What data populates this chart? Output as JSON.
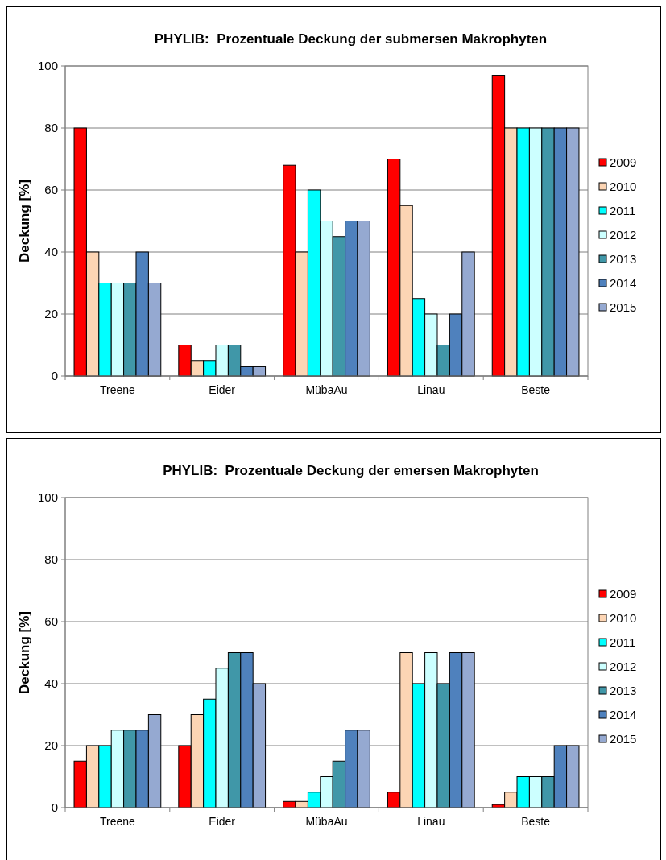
{
  "chart_data": [
    {
      "type": "bar",
      "title": "PHYLIB:  Prozentuale Deckung der submersen Makrophyten",
      "ylabel": "Deckung [%]",
      "categories": [
        "Treene",
        "Eider",
        "MübaAu",
        "Linau",
        "Beste"
      ],
      "ylim": [
        0,
        100
      ],
      "yticks": [
        0,
        20,
        40,
        60,
        80,
        100
      ],
      "grid": "y",
      "legend": "right",
      "series": [
        {
          "name": "2009",
          "color": "#ff0000",
          "values": [
            80,
            10,
            68,
            70,
            97
          ]
        },
        {
          "name": "2010",
          "color": "#fcd5b4",
          "values": [
            40,
            5,
            40,
            55,
            80
          ]
        },
        {
          "name": "2011",
          "color": "#00ffff",
          "values": [
            30,
            5,
            60,
            25,
            80
          ]
        },
        {
          "name": "2012",
          "color": "#ccffff",
          "values": [
            30,
            10,
            50,
            20,
            80
          ]
        },
        {
          "name": "2013",
          "color": "#4097a8",
          "values": [
            30,
            10,
            45,
            10,
            80
          ]
        },
        {
          "name": "2014",
          "color": "#4f81bd",
          "values": [
            40,
            3,
            50,
            20,
            80
          ]
        },
        {
          "name": "2015",
          "color": "#95a9d1",
          "values": [
            30,
            3,
            50,
            40,
            80
          ]
        }
      ]
    },
    {
      "type": "bar",
      "title": "PHYLIB:  Prozentuale Deckung der emersen Makrophyten",
      "ylabel": "Deckung [%]",
      "categories": [
        "Treene",
        "Eider",
        "MübaAu",
        "Linau",
        "Beste"
      ],
      "ylim": [
        0,
        100
      ],
      "yticks": [
        0,
        20,
        40,
        60,
        80,
        100
      ],
      "grid": "y",
      "legend": "right",
      "series": [
        {
          "name": "2009",
          "color": "#ff0000",
          "values": [
            15,
            20,
            2,
            5,
            1
          ]
        },
        {
          "name": "2010",
          "color": "#fcd5b4",
          "values": [
            20,
            30,
            2,
            50,
            5
          ]
        },
        {
          "name": "2011",
          "color": "#00ffff",
          "values": [
            20,
            35,
            5,
            40,
            10
          ]
        },
        {
          "name": "2012",
          "color": "#ccffff",
          "values": [
            25,
            45,
            10,
            50,
            10
          ]
        },
        {
          "name": "2013",
          "color": "#4097a8",
          "values": [
            25,
            50,
            15,
            40,
            10
          ]
        },
        {
          "name": "2014",
          "color": "#4f81bd",
          "values": [
            25,
            50,
            25,
            50,
            20
          ]
        },
        {
          "name": "2015",
          "color": "#95a9d1",
          "values": [
            30,
            40,
            25,
            50,
            20
          ]
        }
      ]
    }
  ]
}
